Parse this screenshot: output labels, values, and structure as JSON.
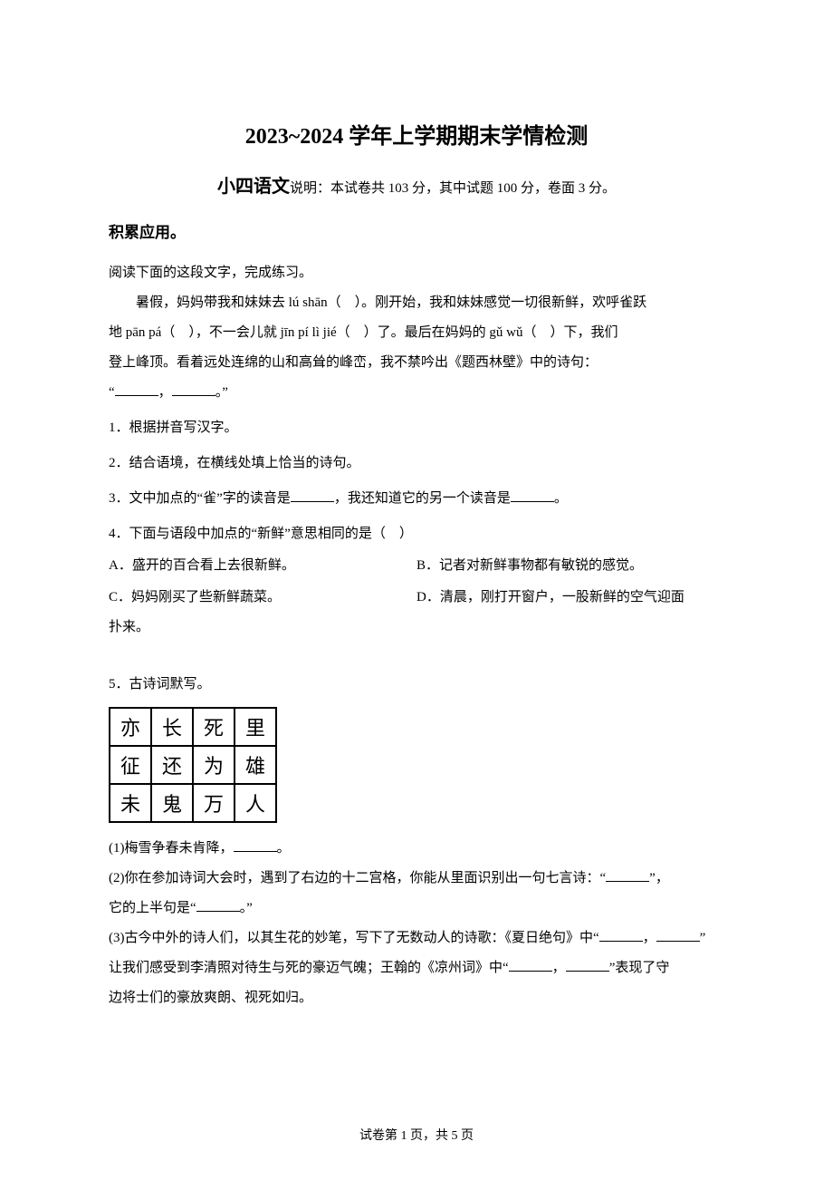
{
  "title": "2023~2024 学年上学期期末学情检测",
  "subtitle_prefix": "小四语文",
  "subtitle_note": "说明：本试卷共 103 分，其中试题 100 分，卷面 3 分。",
  "section_heading": "积累应用。",
  "intro_line": "阅读下面的这段文字，完成练习。",
  "passage_line1_a": "暑假，妈妈带我和妹妹去 lú shān（　）。刚开始，我和妹妹感觉一切很新鲜，欢呼雀跃",
  "passage_line2": "地 pān pá（　），不一会儿就 jīn pí lì jié（　）了。最后在妈妈的 gǔ wǔ（　）下，我们",
  "passage_line3": "登上峰顶。看着远处连绵的山和高耸的峰峦，我不禁吟出《题西林壁》中的诗句：",
  "passage_line4_a": "“",
  "passage_line4_b": "，",
  "passage_line4_c": "。”",
  "q1": "1．根据拼音写汉字。",
  "q2": "2．结合语境，在横线处填上恰当的诗句。",
  "q3_a": "3．文中加点的“雀”字的读音是",
  "q3_b": "，我还知道它的另一个读音是",
  "q3_c": "。",
  "q4": "4．下面与语段中加点的“新鲜”意思相同的是（　）",
  "opt_a": "A．盛开的百合看上去很新鲜。",
  "opt_b": "B．记者对新鲜事物都有敏锐的感觉。",
  "opt_c": "C．妈妈刚买了些新鲜蔬菜。",
  "opt_d": "D．清晨，刚打开窗户，一股新鲜的空气迎面",
  "opt_d_cont": "扑来。",
  "q5": "5．古诗词默写。",
  "grid": {
    "rows": [
      [
        "亦",
        "长",
        "死",
        "里"
      ],
      [
        "征",
        "还",
        "为",
        "雄"
      ],
      [
        "未",
        "鬼",
        "万",
        "人"
      ]
    ]
  },
  "q5_1_a": "(1)梅雪争春未肯降，",
  "q5_1_b": "。",
  "q5_2_a": "(2)你在参加诗词大会时，遇到了右边的十二宫格，你能从里面识别出一句七言诗：“",
  "q5_2_b": "”，",
  "q5_2_c": "它的上半句是“",
  "q5_2_d": "。”",
  "q5_3_a": "(3)古今中外的诗人们，以其生花的妙笔，写下了无数动人的诗歌：《夏日绝句》中“",
  "q5_3_b": "，",
  "q5_3_c": "”",
  "q5_3_d": "让我们感受到李清照对待生与死的豪迈气魄；王翰的《凉州词》中“",
  "q5_3_e": "，",
  "q5_3_f": "”表现了守",
  "q5_3_g": "边将士们的豪放爽朗、视死如归。",
  "footer": "试卷第 1 页，共 5 页"
}
